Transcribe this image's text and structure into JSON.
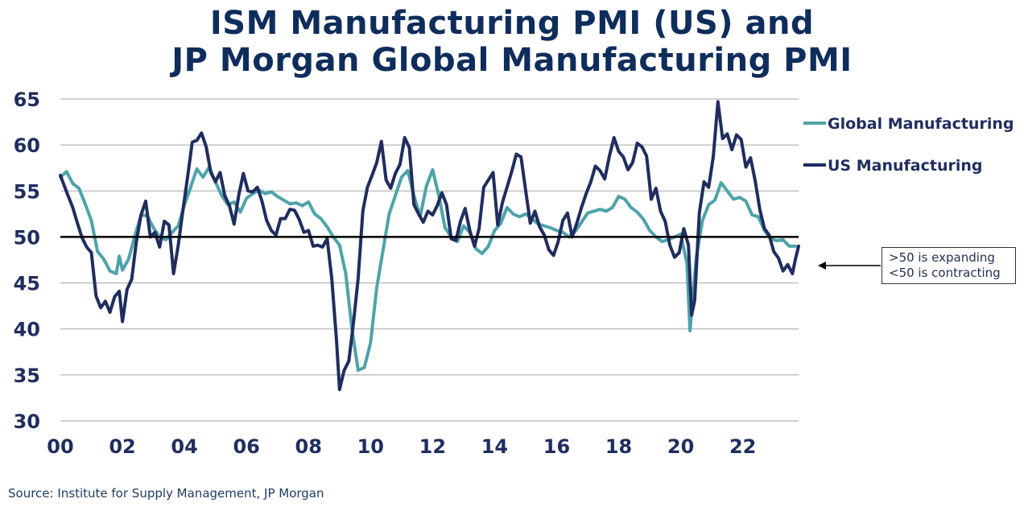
{
  "title": {
    "line1": "ISM Manufacturing PMI (US) and",
    "line2": "JP Morgan Global Manufacturing PMI"
  },
  "source": "Source:  Institute for Supply Management, JP Morgan",
  "annotation": {
    "line1": ">50 is expanding",
    "line2": "<50 is contracting"
  },
  "colors": {
    "us": "#1f2d5f",
    "global": "#4ea3a9",
    "reference": "#000000",
    "grid": "#a6a6a6",
    "axis_text": "#1f2d5f"
  },
  "chart_data": {
    "type": "line",
    "title": "ISM Manufacturing PMI (US) and JP Morgan Global Manufacturing PMI",
    "xlabel": "",
    "ylabel": "",
    "xlim": [
      2000,
      2023.8
    ],
    "ylim": [
      30,
      65
    ],
    "y_ticks": [
      65,
      60,
      55,
      50,
      45,
      40,
      35,
      30
    ],
    "x_ticks": [
      {
        "value": 2000,
        "label": "00"
      },
      {
        "value": 2002,
        "label": "02"
      },
      {
        "value": 2004,
        "label": "04"
      },
      {
        "value": 2006,
        "label": "06"
      },
      {
        "value": 2008,
        "label": "08"
      },
      {
        "value": 2010,
        "label": "10"
      },
      {
        "value": 2012,
        "label": "12"
      },
      {
        "value": 2014,
        "label": "14"
      },
      {
        "value": 2016,
        "label": "16"
      },
      {
        "value": 2018,
        "label": "18"
      },
      {
        "value": 2020,
        "label": "20"
      },
      {
        "value": 2022,
        "label": "22"
      }
    ],
    "grid": true,
    "legend_position": "right",
    "reference_line": 50,
    "series": [
      {
        "name": "Global Manufacturing",
        "color": "#4ea3a9",
        "points": [
          [
            2000.0,
            56.5
          ],
          [
            2000.2,
            57.1
          ],
          [
            2000.4,
            55.8
          ],
          [
            2000.6,
            55.3
          ],
          [
            2000.8,
            53.6
          ],
          [
            2001.0,
            51.8
          ],
          [
            2001.2,
            48.4
          ],
          [
            2001.4,
            47.6
          ],
          [
            2001.6,
            46.3
          ],
          [
            2001.8,
            46.0
          ],
          [
            2001.9,
            47.9
          ],
          [
            2002.0,
            46.4
          ],
          [
            2002.2,
            47.6
          ],
          [
            2002.4,
            50.1
          ],
          [
            2002.6,
            52.4
          ],
          [
            2002.8,
            52.3
          ],
          [
            2003.0,
            51.0
          ],
          [
            2003.2,
            50.0
          ],
          [
            2003.4,
            49.7
          ],
          [
            2003.6,
            50.5
          ],
          [
            2003.8,
            51.2
          ],
          [
            2004.0,
            53.5
          ],
          [
            2004.2,
            55.4
          ],
          [
            2004.4,
            57.4
          ],
          [
            2004.6,
            56.5
          ],
          [
            2004.8,
            57.6
          ],
          [
            2005.0,
            56.0
          ],
          [
            2005.2,
            54.5
          ],
          [
            2005.4,
            53.5
          ],
          [
            2005.6,
            53.8
          ],
          [
            2005.8,
            52.7
          ],
          [
            2006.0,
            54.2
          ],
          [
            2006.2,
            54.7
          ],
          [
            2006.4,
            55.1
          ],
          [
            2006.6,
            54.7
          ],
          [
            2006.8,
            54.9
          ],
          [
            2007.0,
            54.4
          ],
          [
            2007.2,
            54.0
          ],
          [
            2007.4,
            53.6
          ],
          [
            2007.6,
            53.7
          ],
          [
            2007.8,
            53.4
          ],
          [
            2008.0,
            53.8
          ],
          [
            2008.2,
            52.5
          ],
          [
            2008.4,
            52.0
          ],
          [
            2008.6,
            51.1
          ],
          [
            2008.8,
            50.0
          ],
          [
            2009.0,
            49.1
          ],
          [
            2009.2,
            46.0
          ],
          [
            2009.4,
            40.0
          ],
          [
            2009.6,
            35.5
          ],
          [
            2009.8,
            35.8
          ],
          [
            2010.0,
            38.5
          ],
          [
            2010.2,
            44.5
          ],
          [
            2010.4,
            48.5
          ],
          [
            2010.6,
            52.5
          ],
          [
            2010.8,
            54.5
          ],
          [
            2011.0,
            56.5
          ],
          [
            2011.2,
            57.2
          ],
          [
            2011.4,
            54.5
          ],
          [
            2011.6,
            52.2
          ],
          [
            2011.8,
            55.5
          ],
          [
            2012.0,
            57.3
          ],
          [
            2012.2,
            54.5
          ],
          [
            2012.4,
            51.0
          ],
          [
            2012.6,
            50.0
          ],
          [
            2012.8,
            49.5
          ],
          [
            2013.0,
            51.2
          ],
          [
            2013.2,
            50.5
          ],
          [
            2013.4,
            48.7
          ],
          [
            2013.6,
            48.2
          ],
          [
            2013.8,
            49.0
          ],
          [
            2014.0,
            50.7
          ],
          [
            2014.2,
            51.5
          ],
          [
            2014.4,
            53.2
          ],
          [
            2014.6,
            52.5
          ],
          [
            2014.8,
            52.2
          ],
          [
            2015.0,
            52.5
          ],
          [
            2015.2,
            52.0
          ],
          [
            2015.4,
            51.4
          ],
          [
            2015.6,
            51.2
          ],
          [
            2015.8,
            51.0
          ],
          [
            2016.0,
            50.7
          ],
          [
            2016.2,
            50.5
          ],
          [
            2016.4,
            50.0
          ],
          [
            2016.6,
            50.6
          ],
          [
            2016.8,
            51.6
          ],
          [
            2017.0,
            52.6
          ],
          [
            2017.2,
            52.8
          ],
          [
            2017.4,
            53.0
          ],
          [
            2017.6,
            52.8
          ],
          [
            2017.8,
            53.2
          ],
          [
            2018.0,
            54.4
          ],
          [
            2018.2,
            54.1
          ],
          [
            2018.4,
            53.2
          ],
          [
            2018.6,
            52.7
          ],
          [
            2018.8,
            51.9
          ],
          [
            2019.0,
            50.7
          ],
          [
            2019.2,
            50.0
          ],
          [
            2019.4,
            49.5
          ],
          [
            2019.6,
            49.7
          ],
          [
            2019.8,
            50.0
          ],
          [
            2020.0,
            50.3
          ],
          [
            2020.2,
            47.1
          ],
          [
            2020.3,
            39.8
          ],
          [
            2020.5,
            47.8
          ],
          [
            2020.7,
            51.8
          ],
          [
            2020.9,
            53.5
          ],
          [
            2021.1,
            54.0
          ],
          [
            2021.3,
            55.9
          ],
          [
            2021.5,
            55.0
          ],
          [
            2021.7,
            54.1
          ],
          [
            2021.9,
            54.3
          ],
          [
            2022.1,
            53.9
          ],
          [
            2022.3,
            52.4
          ],
          [
            2022.5,
            52.2
          ],
          [
            2022.7,
            50.7
          ],
          [
            2022.9,
            49.8
          ],
          [
            2023.1,
            49.6
          ],
          [
            2023.3,
            49.7
          ],
          [
            2023.5,
            49.0
          ],
          [
            2023.7,
            49.0
          ]
        ]
      },
      {
        "name": "US Manufacturing",
        "color": "#1f2d5f",
        "points": [
          [
            2000.0,
            56.7
          ],
          [
            2000.2,
            54.9
          ],
          [
            2000.4,
            53.2
          ],
          [
            2000.55,
            51.5
          ],
          [
            2000.7,
            49.9
          ],
          [
            2000.85,
            48.9
          ],
          [
            2001.0,
            48.3
          ],
          [
            2001.15,
            43.6
          ],
          [
            2001.3,
            42.3
          ],
          [
            2001.45,
            43.0
          ],
          [
            2001.6,
            41.8
          ],
          [
            2001.75,
            43.5
          ],
          [
            2001.9,
            44.1
          ],
          [
            2002.0,
            40.8
          ],
          [
            2002.15,
            44.3
          ],
          [
            2002.3,
            45.4
          ],
          [
            2002.45,
            49.5
          ],
          [
            2002.6,
            52.4
          ],
          [
            2002.75,
            53.9
          ],
          [
            2002.9,
            50.0
          ],
          [
            2003.05,
            50.5
          ],
          [
            2003.2,
            48.9
          ],
          [
            2003.35,
            51.7
          ],
          [
            2003.5,
            51.3
          ],
          [
            2003.65,
            46.0
          ],
          [
            2003.8,
            49.1
          ],
          [
            2003.95,
            52.9
          ],
          [
            2004.1,
            56.5
          ],
          [
            2004.25,
            60.3
          ],
          [
            2004.4,
            60.5
          ],
          [
            2004.55,
            61.3
          ],
          [
            2004.7,
            59.8
          ],
          [
            2004.85,
            57.0
          ],
          [
            2005.0,
            56.0
          ],
          [
            2005.15,
            57.0
          ],
          [
            2005.3,
            54.5
          ],
          [
            2005.45,
            53.4
          ],
          [
            2005.6,
            51.4
          ],
          [
            2005.75,
            54.5
          ],
          [
            2005.9,
            56.9
          ],
          [
            2006.05,
            55.0
          ],
          [
            2006.2,
            54.9
          ],
          [
            2006.35,
            55.4
          ],
          [
            2006.5,
            53.9
          ],
          [
            2006.65,
            51.8
          ],
          [
            2006.8,
            50.7
          ],
          [
            2006.95,
            50.2
          ],
          [
            2007.1,
            52.0
          ],
          [
            2007.25,
            52.0
          ],
          [
            2007.4,
            53.0
          ],
          [
            2007.55,
            52.9
          ],
          [
            2007.7,
            51.9
          ],
          [
            2007.85,
            50.5
          ],
          [
            2008.0,
            50.7
          ],
          [
            2008.15,
            49.0
          ],
          [
            2008.3,
            49.1
          ],
          [
            2008.45,
            48.9
          ],
          [
            2008.6,
            49.8
          ],
          [
            2008.75,
            45.5
          ],
          [
            2008.9,
            38.9
          ],
          [
            2009.0,
            33.4
          ],
          [
            2009.15,
            35.5
          ],
          [
            2009.3,
            36.5
          ],
          [
            2009.45,
            40.7
          ],
          [
            2009.6,
            45.5
          ],
          [
            2009.75,
            52.8
          ],
          [
            2009.9,
            55.4
          ],
          [
            2010.05,
            56.7
          ],
          [
            2010.2,
            58.1
          ],
          [
            2010.35,
            60.4
          ],
          [
            2010.5,
            56.2
          ],
          [
            2010.65,
            55.3
          ],
          [
            2010.8,
            56.9
          ],
          [
            2010.95,
            57.9
          ],
          [
            2011.1,
            60.8
          ],
          [
            2011.25,
            59.7
          ],
          [
            2011.4,
            53.5
          ],
          [
            2011.55,
            52.5
          ],
          [
            2011.7,
            51.6
          ],
          [
            2011.85,
            52.8
          ],
          [
            2012.0,
            52.4
          ],
          [
            2012.15,
            53.4
          ],
          [
            2012.3,
            54.8
          ],
          [
            2012.45,
            53.5
          ],
          [
            2012.6,
            49.8
          ],
          [
            2012.75,
            49.6
          ],
          [
            2012.9,
            51.7
          ],
          [
            2013.05,
            53.1
          ],
          [
            2013.2,
            50.7
          ],
          [
            2013.35,
            49.0
          ],
          [
            2013.5,
            50.9
          ],
          [
            2013.65,
            55.4
          ],
          [
            2013.8,
            56.2
          ],
          [
            2013.95,
            57.0
          ],
          [
            2014.1,
            51.3
          ],
          [
            2014.25,
            53.7
          ],
          [
            2014.4,
            55.4
          ],
          [
            2014.55,
            57.1
          ],
          [
            2014.7,
            59.0
          ],
          [
            2014.85,
            58.7
          ],
          [
            2015.0,
            55.1
          ],
          [
            2015.15,
            51.5
          ],
          [
            2015.3,
            52.8
          ],
          [
            2015.45,
            51.1
          ],
          [
            2015.6,
            50.2
          ],
          [
            2015.75,
            48.6
          ],
          [
            2015.9,
            48.0
          ],
          [
            2016.05,
            49.5
          ],
          [
            2016.2,
            51.8
          ],
          [
            2016.35,
            52.6
          ],
          [
            2016.5,
            50.0
          ],
          [
            2016.65,
            51.5
          ],
          [
            2016.8,
            53.2
          ],
          [
            2016.95,
            54.7
          ],
          [
            2017.1,
            56.0
          ],
          [
            2017.25,
            57.7
          ],
          [
            2017.4,
            57.2
          ],
          [
            2017.55,
            56.3
          ],
          [
            2017.7,
            58.8
          ],
          [
            2017.85,
            60.8
          ],
          [
            2018.0,
            59.3
          ],
          [
            2018.15,
            58.7
          ],
          [
            2018.3,
            57.3
          ],
          [
            2018.45,
            58.1
          ],
          [
            2018.6,
            60.2
          ],
          [
            2018.75,
            59.8
          ],
          [
            2018.9,
            58.8
          ],
          [
            2019.05,
            54.1
          ],
          [
            2019.2,
            55.3
          ],
          [
            2019.35,
            52.8
          ],
          [
            2019.5,
            51.7
          ],
          [
            2019.65,
            49.1
          ],
          [
            2019.8,
            47.8
          ],
          [
            2019.95,
            48.3
          ],
          [
            2020.1,
            50.9
          ],
          [
            2020.25,
            49.1
          ],
          [
            2020.35,
            41.5
          ],
          [
            2020.45,
            43.1
          ],
          [
            2020.6,
            52.6
          ],
          [
            2020.75,
            56.0
          ],
          [
            2020.9,
            55.4
          ],
          [
            2021.05,
            58.7
          ],
          [
            2021.2,
            64.7
          ],
          [
            2021.35,
            60.7
          ],
          [
            2021.5,
            61.2
          ],
          [
            2021.65,
            59.5
          ],
          [
            2021.8,
            61.1
          ],
          [
            2021.95,
            60.6
          ],
          [
            2022.1,
            57.6
          ],
          [
            2022.25,
            58.6
          ],
          [
            2022.4,
            56.1
          ],
          [
            2022.55,
            53.0
          ],
          [
            2022.7,
            50.9
          ],
          [
            2022.85,
            50.2
          ],
          [
            2023.0,
            48.4
          ],
          [
            2023.15,
            47.7
          ],
          [
            2023.3,
            46.3
          ],
          [
            2023.45,
            47.0
          ],
          [
            2023.6,
            46.0
          ],
          [
            2023.7,
            47.6
          ],
          [
            2023.8,
            49.0
          ]
        ]
      }
    ]
  }
}
